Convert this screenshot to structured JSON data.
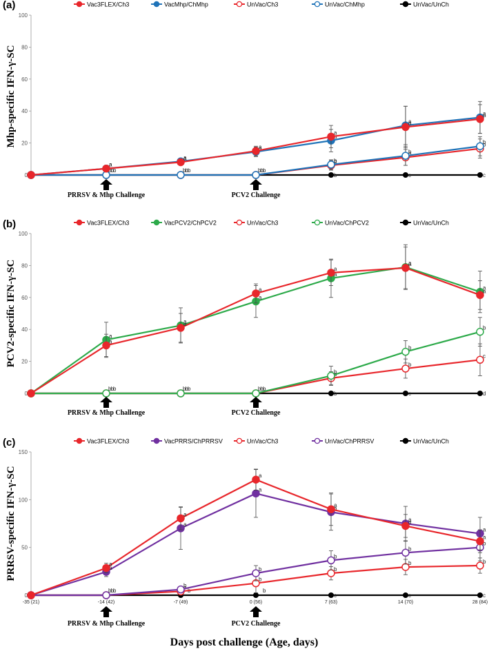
{
  "figure": {
    "xlabel": "Days post challenge (Age, days)",
    "x_categories": [
      "-35 (21)",
      "-14 (42)",
      "-7 (49)",
      "0 (56)",
      "7 (63)",
      "14 (70)",
      "28 (84)"
    ],
    "annotations": {
      "prrsv_mhp": "PRRSV & Mhp Challenge",
      "pcv2": "PCV2 Challenge"
    },
    "colors": {
      "red": "#e8262b",
      "blue": "#1f73b8",
      "green": "#2daa4a",
      "purple": "#7030a0",
      "black": "#000000"
    }
  },
  "chart_data": [
    {
      "type": "line",
      "panel": "(a)",
      "ylabel": "Mhp-specific IFN-γ-SC",
      "ylim": [
        0,
        100
      ],
      "yticks": [
        0,
        20,
        40,
        60,
        80,
        100
      ],
      "x_tick_labels_shown": false,
      "categories": [
        "-35 (21)",
        "-14 (42)",
        "-7 (49)",
        "0 (56)",
        "7 (63)",
        "14 (70)",
        "28 (84)"
      ],
      "series": [
        {
          "name": "Vac3FLEX/Ch3",
          "color": "red",
          "filled": true,
          "values": [
            0,
            4,
            8,
            15,
            24,
            30,
            35
          ],
          "errors": [
            0,
            2,
            2,
            3,
            7,
            13,
            9
          ],
          "letters": [
            "",
            "a",
            "a",
            "a",
            "a",
            "a",
            "a"
          ]
        },
        {
          "name": "VacMhp/ChMhp",
          "color": "blue",
          "filled": true,
          "values": [
            0,
            4,
            8.5,
            14.5,
            21.5,
            31,
            36
          ],
          "errors": [
            0,
            2,
            1.5,
            3,
            7,
            12,
            10
          ],
          "letters": [
            "",
            "a",
            "a",
            "a",
            "a",
            "a",
            "a"
          ]
        },
        {
          "name": "UnVac/Ch3",
          "color": "red",
          "filled": false,
          "values": [
            0,
            0,
            0,
            0,
            6,
            11,
            16.5
          ],
          "errors": [
            0,
            0.5,
            0.5,
            0.5,
            3,
            5,
            6
          ],
          "letters": [
            "",
            "b",
            "b",
            "b",
            "b",
            "b",
            "b"
          ]
        },
        {
          "name": "UnVac/ChMhp",
          "color": "blue",
          "filled": false,
          "values": [
            0,
            0,
            0,
            0,
            6.5,
            12,
            18
          ],
          "errors": [
            0,
            0.5,
            0.5,
            0.5,
            3,
            6,
            6
          ],
          "letters": [
            "",
            "b",
            "b",
            "b",
            "b",
            "b",
            "b"
          ]
        },
        {
          "name": "UnVac/UnCh",
          "color": "black",
          "filled": true,
          "values": [
            0,
            0,
            0,
            0,
            0,
            0,
            0
          ],
          "errors": [
            0,
            0,
            0,
            0,
            0,
            0,
            0
          ],
          "letters": [
            "",
            "b",
            "b",
            "b",
            "b",
            "c",
            "c"
          ]
        }
      ]
    },
    {
      "type": "line",
      "panel": "(b)",
      "ylabel": "PCV2-specific IFN-γ-SC",
      "ylim": [
        0,
        100
      ],
      "yticks": [
        0,
        20,
        40,
        60,
        80,
        100
      ],
      "x_tick_labels_shown": false,
      "categories": [
        "-35 (21)",
        "-14 (42)",
        "-7 (49)",
        "0 (56)",
        "7 (63)",
        "14 (70)",
        "28 (84)"
      ],
      "series": [
        {
          "name": "Vac3FLEX/Ch3",
          "color": "red",
          "filled": true,
          "values": [
            0,
            30,
            41,
            62.5,
            75.5,
            78.5,
            61.5
          ],
          "errors": [
            0,
            7,
            9,
            6,
            8,
            13,
            9
          ],
          "letters": [
            "",
            "a",
            "a",
            "a",
            "a",
            "a",
            "a"
          ]
        },
        {
          "name": "VacPCV2/ChPCV2",
          "color": "green",
          "filled": true,
          "values": [
            0,
            33.5,
            42.5,
            57.5,
            72,
            79,
            63.5
          ],
          "errors": [
            0,
            11,
            11,
            10,
            12,
            14,
            13
          ],
          "letters": [
            "",
            "a",
            "a",
            "a",
            "a",
            "a",
            "a"
          ]
        },
        {
          "name": "UnVac/Ch3",
          "color": "red",
          "filled": false,
          "values": [
            0,
            0,
            0,
            0,
            9.5,
            15.5,
            21
          ],
          "errors": [
            0,
            0.5,
            0.5,
            0.5,
            4,
            6,
            10
          ],
          "letters": [
            "",
            "b",
            "b",
            "b",
            "b",
            "b",
            "c"
          ]
        },
        {
          "name": "UnVac/ChPCV2",
          "color": "green",
          "filled": false,
          "values": [
            0,
            0,
            0,
            0,
            11,
            26,
            38.5
          ],
          "errors": [
            0,
            0.5,
            0.5,
            0.5,
            6,
            7,
            9
          ],
          "letters": [
            "",
            "b",
            "b",
            "b",
            "b",
            "b",
            "b"
          ]
        },
        {
          "name": "UnVac/UnCh",
          "color": "black",
          "filled": true,
          "values": [
            0,
            0,
            0,
            0,
            0,
            0,
            0
          ],
          "errors": [
            0,
            0,
            0,
            0,
            0,
            0,
            0
          ],
          "letters": [
            "",
            "b",
            "b",
            "b",
            "b",
            "c",
            "d"
          ]
        }
      ]
    },
    {
      "type": "line",
      "panel": "(c)",
      "ylabel": "PRRSV-specific IFN-γ-SC",
      "ylim": [
        0,
        150
      ],
      "yticks": [
        0,
        50,
        100,
        150
      ],
      "x_tick_labels_shown": true,
      "categories": [
        "-35 (21)",
        "-14 (42)",
        "-7 (49)",
        "0 (56)",
        "7 (63)",
        "14 (70)",
        "28 (84)"
      ],
      "series": [
        {
          "name": "Vac3FLEX/Ch3",
          "color": "red",
          "filled": true,
          "values": [
            0,
            28.5,
            80.5,
            121,
            90,
            72.5,
            56.5
          ],
          "errors": [
            0,
            5,
            12,
            11,
            17,
            12,
            12
          ],
          "letters": [
            "",
            "a",
            "a",
            "a",
            "a",
            "a",
            "a"
          ]
        },
        {
          "name": "VacPRRS/ChPRRSV",
          "color": "purple",
          "filled": true,
          "values": [
            0,
            24.5,
            70,
            106.5,
            87,
            75,
            64.5
          ],
          "errors": [
            0,
            5,
            22,
            25,
            19,
            18,
            17
          ],
          "letters": [
            "",
            "a",
            "a",
            "a",
            "a",
            "a",
            "a"
          ]
        },
        {
          "name": "UnVac/Ch3",
          "color": "red",
          "filled": false,
          "values": [
            0,
            0,
            4,
            12.5,
            23,
            29.5,
            31
          ],
          "errors": [
            0,
            0.5,
            2,
            10,
            7,
            8,
            8
          ],
          "letters": [
            "",
            "b",
            "b",
            "b",
            "b",
            "b",
            "b"
          ]
        },
        {
          "name": "UnVac/ChPRRSV",
          "color": "purple",
          "filled": false,
          "values": [
            0,
            0,
            6,
            23,
            36.5,
            44.5,
            50
          ],
          "errors": [
            0,
            0.5,
            3,
            8,
            10,
            12,
            14
          ],
          "letters": [
            "",
            "b",
            "b",
            "b",
            "b",
            "b",
            "b"
          ]
        },
        {
          "name": "UnVac/UnCh",
          "color": "black",
          "filled": true,
          "values": [
            0,
            0,
            0,
            0,
            0,
            0,
            0
          ],
          "errors": [
            0,
            0,
            0,
            0,
            0,
            0,
            0
          ],
          "letters": [
            "",
            "b",
            "b",
            "b",
            "c",
            "c",
            "c"
          ]
        }
      ]
    }
  ]
}
